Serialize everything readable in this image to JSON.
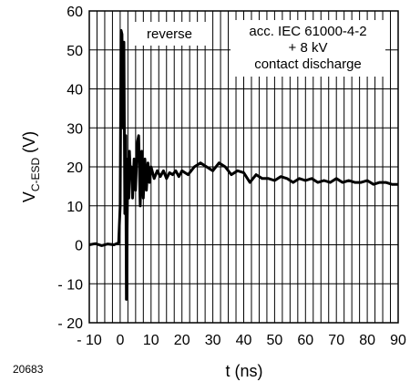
{
  "chart_data": {
    "type": "line",
    "ylabel": {
      "main": "V",
      "sub": "C-ESD",
      "unit": " (V)"
    },
    "xlabel": "t (ns)",
    "figure_code": "20683",
    "annotations": {
      "left": "reverse",
      "right": [
        "acc. IEC 61000-4-2",
        "+ 8 kV",
        "contact discharge"
      ]
    },
    "xlim": [
      -10,
      90
    ],
    "ylim": [
      -20,
      60
    ],
    "x_ticks": [
      -10,
      0,
      10,
      20,
      30,
      40,
      50,
      60,
      70,
      80,
      90
    ],
    "x_tick_labels": [
      "- 10",
      "0",
      "10",
      "20",
      "30",
      "40",
      "50",
      "60",
      "70",
      "80",
      "90"
    ],
    "y_ticks": [
      -20,
      -10,
      0,
      10,
      20,
      30,
      40,
      50,
      60
    ],
    "y_tick_labels": [
      "- 20",
      "- 10",
      "0",
      "10",
      "20",
      "30",
      "40",
      "50",
      "60"
    ],
    "x_minor_step": 2.5,
    "grid": true,
    "series": [
      {
        "color": "#000000",
        "x": [
          -10,
          -8,
          -6,
          -4,
          -2,
          -0.5,
          0,
          0.3,
          0.6,
          0.9,
          1.2,
          1.5,
          1.8,
          2.0,
          2.2,
          2.5,
          2.8,
          3.0,
          3.3,
          3.6,
          4.0,
          4.5,
          5.0,
          5.5,
          6.0,
          6.5,
          7.0,
          7.5,
          8.0,
          8.5,
          9.0,
          9.5,
          10,
          11,
          12,
          13,
          14,
          15,
          16,
          17,
          18,
          19,
          20,
          22,
          24,
          26,
          28,
          30,
          32,
          34,
          36,
          38,
          40,
          42,
          44,
          46,
          48,
          50,
          52,
          54,
          56,
          58,
          60,
          62,
          64,
          66,
          68,
          70,
          72,
          74,
          76,
          78,
          80,
          82,
          84,
          86,
          88,
          90
        ],
        "y": [
          0,
          0.3,
          -0.2,
          0.2,
          0,
          0.5,
          10,
          55,
          54,
          30,
          52,
          8,
          28,
          -14,
          2,
          22,
          12,
          24,
          18,
          20,
          12,
          22,
          14,
          26,
          28,
          10,
          24,
          12,
          22,
          14,
          21,
          16,
          20,
          17,
          19,
          17.5,
          19,
          17,
          18.5,
          18,
          19,
          17.5,
          19,
          18,
          20,
          21,
          20,
          19,
          21,
          20,
          18,
          19,
          18.5,
          16,
          18,
          17,
          17,
          16.5,
          17.5,
          17,
          16,
          17,
          16.5,
          17,
          16,
          16.5,
          16,
          17,
          16,
          16.5,
          16,
          16,
          16.5,
          15.5,
          16,
          16,
          15.5,
          15.5
        ]
      }
    ]
  }
}
